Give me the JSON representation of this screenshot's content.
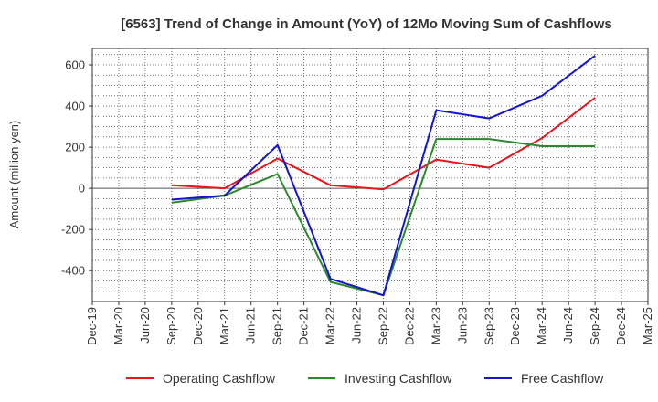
{
  "chart_data": {
    "type": "line",
    "title": "[6563]  Trend of Change in Amount (YoY) of 12Mo Moving Sum of Cashflows",
    "xlabel": "",
    "ylabel": "Amount (million yen)",
    "ylim": [
      -550,
      680
    ],
    "yticks": [
      -400,
      -200,
      0,
      200,
      400,
      600
    ],
    "ytick_labels": [
      "-400",
      "-200",
      "0",
      "200",
      "400",
      "600"
    ],
    "categories": [
      "Dec-19",
      "Mar-20",
      "Jun-20",
      "Sep-20",
      "Dec-20",
      "Mar-21",
      "Jun-21",
      "Sep-21",
      "Dec-21",
      "Mar-22",
      "Jun-22",
      "Sep-22",
      "Dec-22",
      "Mar-23",
      "Jun-23",
      "Sep-23",
      "Dec-23",
      "Mar-24",
      "Jun-24",
      "Sep-24",
      "Dec-24",
      "Mar-25"
    ],
    "grid": true,
    "legend_position": "bottom",
    "series": [
      {
        "name": "Operating Cashflow",
        "color": "#e8141a",
        "values": [
          null,
          null,
          null,
          15,
          null,
          0,
          null,
          145,
          null,
          15,
          null,
          -5,
          null,
          140,
          null,
          100,
          null,
          245,
          null,
          440,
          null,
          null
        ]
      },
      {
        "name": "Investing Cashflow",
        "color": "#2a8a2a",
        "values": [
          null,
          null,
          null,
          -70,
          null,
          -35,
          null,
          70,
          null,
          -455,
          null,
          -520,
          null,
          240,
          null,
          240,
          null,
          205,
          null,
          205,
          null,
          null
        ]
      },
      {
        "name": "Free Cashflow",
        "color": "#1414d2",
        "values": [
          null,
          null,
          null,
          -55,
          null,
          -35,
          null,
          210,
          null,
          -440,
          null,
          -520,
          null,
          380,
          null,
          340,
          null,
          450,
          null,
          645,
          null,
          null
        ]
      }
    ]
  }
}
